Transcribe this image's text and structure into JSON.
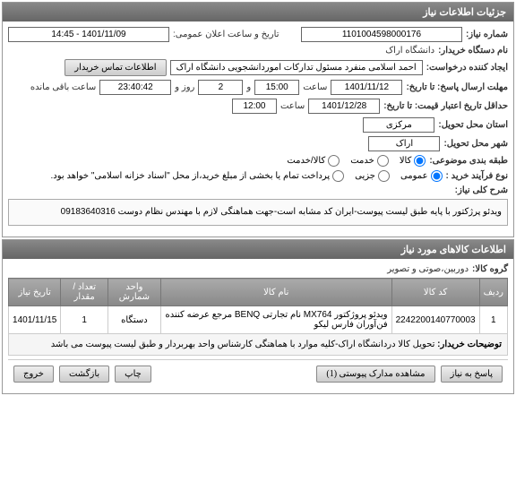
{
  "panel1": {
    "title": "جزئیات اطلاعات نیاز",
    "need_number_label": "شماره نیاز:",
    "need_number": "1101004598000176",
    "announce_label": "تاریخ و ساعت اعلان عمومی:",
    "announce_value": "1401/11/09 - 14:45",
    "buyer_label": "نام دستگاه خریدار:",
    "buyer_value": "دانشگاه اراک",
    "creator_label": "ایجاد کننده درخواست:",
    "creator_value": "احمد اسلامی منفرد مسئول تدارکات اموردانشجویی دانشگاه اراک",
    "contact_btn": "اطلاعات تماس خریدار",
    "deadline_label": "مهلت ارسال پاسخ: تا تاریخ:",
    "deadline_date": "1401/11/12",
    "time_label": "ساعت",
    "deadline_time": "15:00",
    "and_label": "و",
    "days": "2",
    "days_label": "روز و",
    "remaining": "23:40:42",
    "remaining_label": "ساعت باقی مانده",
    "validity_label": "حداقل تاریخ اعتبار قیمت: تا تاریخ:",
    "validity_date": "1401/12/28",
    "validity_time": "12:00",
    "province_label": "استان محل تحویل:",
    "province": "مرکزی",
    "city_label": "شهر محل تحویل:",
    "city": "اراک",
    "category_label": "طبقه بندی موضوعی:",
    "cat_goods": "کالا",
    "cat_service": "خدمت",
    "cat_both": "کالا/خدمت",
    "process_label": "نوع فرآیند خرید :",
    "proc_normal": "عمومی",
    "proc_partial": "جزیی",
    "proc_note": "پرداخت تمام یا بخشی از مبلغ خرید،از محل \"اسناد خزانه اسلامی\" خواهد بود.",
    "desc_label": "شرح کلی نیاز:",
    "desc_text": "ویدئو پرژکتور با پایه طبق لیست پیوست-ایران کد مشابه است-جهت هماهنگی لازم با مهندس نظام دوست 09183640316"
  },
  "panel2": {
    "title": "اطلاعات کالاهای مورد نیاز",
    "group_label": "گروه کالا:",
    "group_value": "دوربین،صوتی و تصویر",
    "th_row": "ردیف",
    "th_code": "کد کالا",
    "th_name": "نام کالا",
    "th_unit": "واحد شمارش",
    "th_qty": "تعداد / مقدار",
    "th_date": "تاریخ نیاز",
    "r1_row": "1",
    "r1_code": "2242200140770003",
    "r1_name": "ویدئو پروژکتور MX764 نام تجارتی BENQ مرجع عرضه کننده فن‌آوران فارس لیکو",
    "r1_unit": "دستگاه",
    "r1_qty": "1",
    "r1_date": "1401/11/15",
    "note_label": "توضیحات خریدار:",
    "note_text": "تحویل کالا دردانشگاه اراک-کلیه موارد با هماهنگی کارشناس واحد بهربردار و طبق لیست پیوست می باشد"
  },
  "footer": {
    "reply": "پاسخ به نیاز",
    "docs": "مشاهده مدارک پیوستی (1)",
    "print": "چاپ",
    "back": "بازگشت",
    "exit": "خروج"
  }
}
